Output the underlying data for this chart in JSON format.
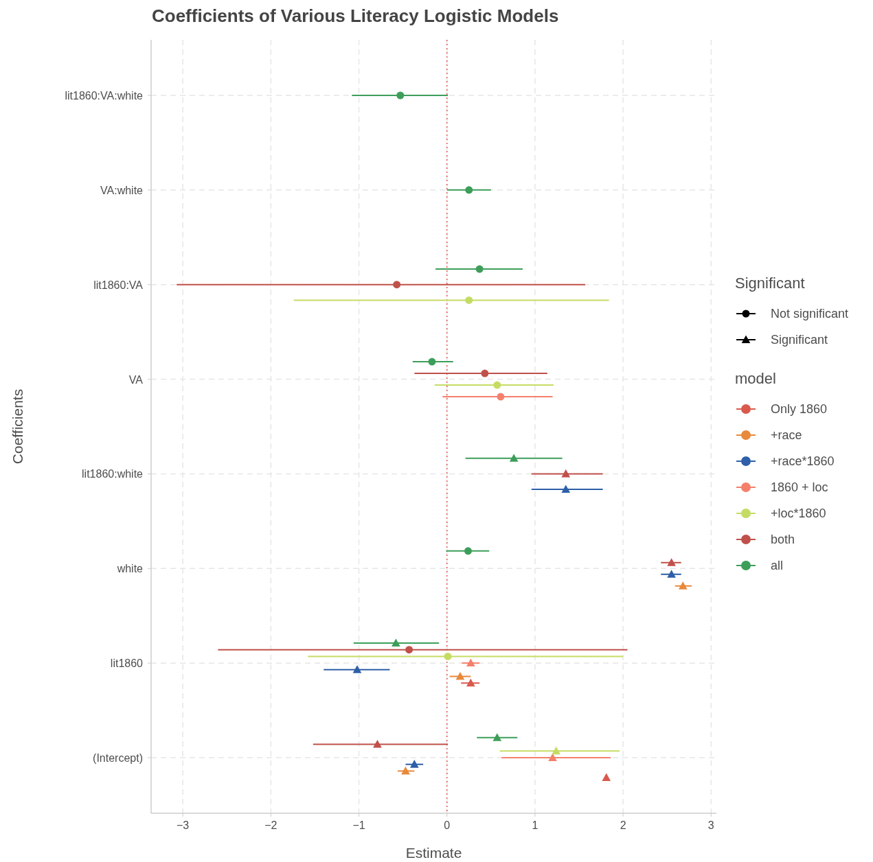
{
  "chart_data": {
    "type": "scatter",
    "orientation": "horizontal",
    "title": "Coefficients of Various Literacy Logistic Models",
    "xlabel": "Estimate",
    "ylabel": "Coefficients",
    "categories": [
      "lit1860:VA:white",
      "VA:white",
      "lit1860:VA",
      "VA",
      "lit1860:white",
      "white",
      "lit1860",
      "(Intercept)"
    ],
    "xlim": [
      -3.36,
      3.06
    ],
    "xticks": [
      {
        "value": -3,
        "label": "−3"
      },
      {
        "value": -2,
        "label": "−2"
      },
      {
        "value": -1,
        "label": "−1"
      },
      0,
      1,
      2,
      3
    ],
    "grid": true,
    "legend": "right",
    "legend_title": "model",
    "annotations": [
      "Significant",
      "Not significant",
      "Significant"
    ],
    "ref_lines": [
      {
        "axis": "x",
        "value": 0,
        "color": "#e8554e",
        "line_style": "dotted"
      }
    ],
    "series": [
      {
        "name": "Only 1860",
        "color": "#d9594c",
        "marker": "triangle",
        "values": [
          null,
          null,
          null,
          null,
          null,
          null,
          0.27,
          1.81
        ],
        "errors": [
          null,
          null,
          null,
          null,
          null,
          null,
          [
            0.16,
            0.37
          ],
          null
        ]
      },
      {
        "name": "+race",
        "color": "#e8893b",
        "marker": "triangle",
        "values": [
          null,
          null,
          null,
          null,
          null,
          2.68,
          0.15,
          -0.47
        ],
        "errors": [
          null,
          null,
          null,
          null,
          null,
          [
            2.59,
            2.78
          ],
          [
            0.03,
            0.27
          ],
          [
            -0.56,
            -0.37
          ]
        ]
      },
      {
        "name": "+race*1860",
        "color": "#2e5fa8",
        "marker": "triangle",
        "values": [
          null,
          null,
          null,
          null,
          1.35,
          2.55,
          -1.02,
          -0.37
        ],
        "errors": [
          null,
          null,
          null,
          null,
          [
            0.96,
            1.77
          ],
          [
            2.43,
            2.66
          ],
          [
            -1.4,
            -0.65
          ],
          [
            -0.47,
            -0.27
          ]
        ]
      },
      {
        "name": "1860 + loc",
        "color": "#f4806c",
        "marker": "circle",
        "values": [
          null,
          null,
          null,
          0.61,
          null,
          null,
          null,
          null
        ],
        "errors": [
          null,
          null,
          null,
          [
            -0.05,
            1.2
          ],
          null,
          null,
          null,
          null
        ]
      },
      {
        "color": "#f4806c",
        "marker": "triangle",
        "values": [
          null,
          null,
          null,
          null,
          null,
          null,
          0.27,
          1.2
        ],
        "errors": [
          null,
          null,
          null,
          null,
          null,
          null,
          [
            0.17,
            0.37
          ],
          [
            0.62,
            1.86
          ]
        ]
      },
      {
        "name": "+loc*1860",
        "color": "#c5dc64",
        "marker": "circle",
        "values": [
          null,
          null,
          0.25,
          0.57,
          null,
          null,
          0.01,
          null
        ],
        "errors": [
          null,
          null,
          [
            -1.74,
            1.84
          ],
          [
            -0.14,
            1.21
          ],
          null,
          null,
          [
            -1.58,
            2.0
          ],
          null
        ]
      },
      {
        "color": "#c5dc64",
        "marker": "triangle",
        "values": [
          null,
          null,
          null,
          null,
          null,
          null,
          null,
          1.24
        ],
        "errors": [
          null,
          null,
          null,
          null,
          null,
          null,
          null,
          [
            0.6,
            1.96
          ]
        ]
      },
      {
        "name": "both",
        "color": "#c0504a",
        "marker": "circle",
        "values": [
          null,
          null,
          -0.57,
          0.43,
          null,
          null,
          -0.43,
          null
        ],
        "errors": [
          null,
          null,
          [
            -3.07,
            1.57
          ],
          [
            -0.37,
            1.14
          ],
          null,
          null,
          [
            -2.6,
            2.05
          ],
          null
        ]
      },
      {
        "color": "#c0504a",
        "marker": "triangle",
        "values": [
          null,
          null,
          null,
          null,
          1.35,
          2.55,
          null,
          -0.79
        ],
        "errors": [
          null,
          null,
          null,
          null,
          [
            0.96,
            1.77
          ],
          [
            2.43,
            2.66
          ],
          null,
          [
            -1.52,
            0.01
          ]
        ]
      },
      {
        "name": "all",
        "color": "#3d9e5a",
        "marker": "circle",
        "values": [
          -0.53,
          0.25,
          0.37,
          -0.17,
          null,
          0.24,
          null,
          null
        ],
        "errors": [
          [
            -1.08,
            0.01
          ],
          [
            0.0,
            0.5
          ],
          [
            -0.13,
            0.86
          ],
          [
            -0.39,
            0.07
          ],
          null,
          [
            -0.01,
            0.48
          ],
          null,
          null
        ]
      },
      {
        "color": "#3d9e5a",
        "marker": "triangle",
        "values": [
          null,
          null,
          null,
          null,
          0.76,
          null,
          -0.58,
          0.57
        ],
        "errors": [
          null,
          null,
          null,
          null,
          [
            0.21,
            1.31
          ],
          null,
          [
            -1.06,
            -0.09
          ],
          [
            0.34,
            0.8
          ]
        ]
      }
    ]
  }
}
